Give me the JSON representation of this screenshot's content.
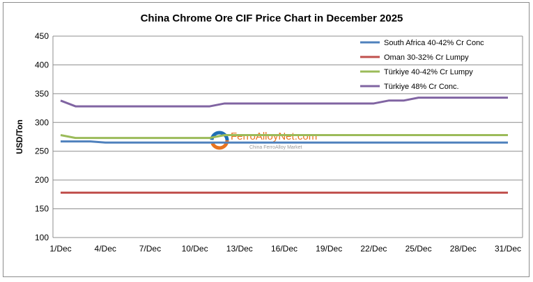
{
  "chart_data": {
    "type": "line",
    "title": "China Chrome Ore CIF Price Chart in December 2025",
    "xlabel": "",
    "ylabel": "USD/Ton",
    "ylim": [
      100,
      450
    ],
    "yticks": [
      "100",
      "150",
      "200",
      "250",
      "300",
      "350",
      "400",
      "450"
    ],
    "x": [
      "1/Dec",
      "2/Dec",
      "3/Dec",
      "4/Dec",
      "5/Dec",
      "6/Dec",
      "7/Dec",
      "8/Dec",
      "9/Dec",
      "10/Dec",
      "11/Dec",
      "12/Dec",
      "13/Dec",
      "14/Dec",
      "15/Dec",
      "16/Dec",
      "17/Dec",
      "18/Dec",
      "19/Dec",
      "20/Dec",
      "21/Dec",
      "22/Dec",
      "23/Dec",
      "24/Dec",
      "25/Dec",
      "26/Dec",
      "27/Dec",
      "28/Dec",
      "29/Dec",
      "30/Dec",
      "31/Dec"
    ],
    "xtick_labels": [
      "1/Dec",
      "4/Dec",
      "7/Dec",
      "10/Dec",
      "13/Dec",
      "16/Dec",
      "19/Dec",
      "22/Dec",
      "25/Dec",
      "28/Dec",
      "31/Dec"
    ],
    "grid": "horizontal",
    "legend_position": "top-right",
    "series": [
      {
        "name": "South Africa 40-42% Cr Conc",
        "color": "#4f81bd",
        "values": [
          267,
          267,
          267,
          265,
          265,
          265,
          265,
          265,
          265,
          265,
          265,
          265,
          265,
          265,
          265,
          265,
          265,
          265,
          265,
          265,
          265,
          265,
          265,
          265,
          265,
          265,
          265,
          265,
          265,
          265,
          265
        ]
      },
      {
        "name": "Oman 30-32% Cr Lumpy",
        "color": "#c0504d",
        "values": [
          178,
          178,
          178,
          178,
          178,
          178,
          178,
          178,
          178,
          178,
          178,
          178,
          178,
          178,
          178,
          178,
          178,
          178,
          178,
          178,
          178,
          178,
          178,
          178,
          178,
          178,
          178,
          178,
          178,
          178,
          178
        ]
      },
      {
        "name": "Türkiye 40-42% Cr Lumpy",
        "color": "#9bbb59",
        "values": [
          278,
          273,
          273,
          273,
          273,
          273,
          273,
          273,
          273,
          273,
          273,
          278,
          278,
          278,
          278,
          278,
          278,
          278,
          278,
          278,
          278,
          278,
          278,
          278,
          278,
          278,
          278,
          278,
          278,
          278,
          278
        ]
      },
      {
        "name": "Türkiye 48% Cr Conc.",
        "color": "#8064a2",
        "values": [
          338,
          328,
          328,
          328,
          328,
          328,
          328,
          328,
          328,
          328,
          328,
          333,
          333,
          333,
          333,
          333,
          333,
          333,
          333,
          333,
          333,
          333,
          338,
          338,
          343,
          343,
          343,
          343,
          343,
          343,
          343
        ]
      }
    ]
  },
  "watermark": {
    "brand": "FerroAlloyNet.com",
    "tagline": "China FerroAlloy Market"
  }
}
